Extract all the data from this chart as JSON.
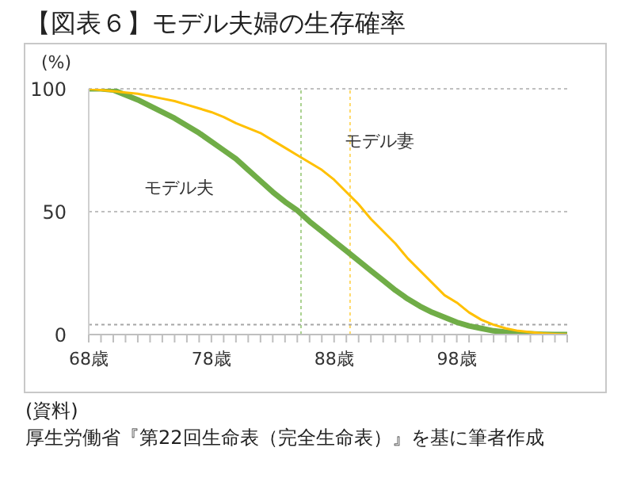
{
  "chart_data": {
    "type": "line",
    "title": "【図表６】モデル夫婦の生存確率",
    "ylabel": "(%)",
    "annotations": [
      "(資料)",
      "厚生労働省『第22回生命表（完全生命表）』を基に筆者作成"
    ],
    "x": [
      68,
      69,
      70,
      71,
      72,
      73,
      74,
      75,
      76,
      77,
      78,
      79,
      80,
      81,
      82,
      83,
      84,
      85,
      86,
      87,
      88,
      89,
      90,
      91,
      92,
      93,
      94,
      95,
      96,
      97,
      98,
      99,
      100,
      101,
      102,
      103,
      104,
      105,
      106,
      107
    ],
    "series": [
      {
        "name": "モデル夫",
        "color": "#70ad47",
        "values": [
          100,
          100,
          99.5,
          97.5,
          95.5,
          93,
          90.5,
          88,
          85,
          82,
          78.5,
          75,
          71.5,
          67,
          62.5,
          58,
          54,
          50.5,
          46,
          42,
          38,
          34,
          30,
          26,
          22,
          18,
          14.5,
          11.5,
          9,
          7,
          5,
          3.5,
          2.5,
          1.5,
          1,
          0.5,
          0.3,
          0.1,
          0,
          0
        ]
      },
      {
        "name": "モデル妻",
        "color": "#ffc000",
        "values": [
          100,
          99.5,
          99,
          98.5,
          98,
          97,
          96,
          95,
          93.5,
          92,
          90.5,
          88.5,
          86,
          84,
          82,
          79,
          76,
          73,
          70,
          67,
          63,
          58,
          53,
          47,
          42,
          37,
          31,
          26,
          21,
          16,
          13,
          9,
          6,
          4,
          2.5,
          1.5,
          1,
          0.5,
          0.2,
          0
        ]
      }
    ],
    "xlim": [
      68,
      107
    ],
    "xticks": [
      {
        "value": 68,
        "label": "68歳"
      },
      {
        "value": 69,
        "label": null
      },
      {
        "value": 70,
        "label": null
      },
      {
        "value": 71,
        "label": null
      },
      {
        "value": 72,
        "label": null
      },
      {
        "value": 73,
        "label": null
      },
      {
        "value": 74,
        "label": null
      },
      {
        "value": 75,
        "label": null
      },
      {
        "value": 76,
        "label": null
      },
      {
        "value": 77,
        "label": null
      },
      {
        "value": 78,
        "label": "78歳"
      },
      {
        "value": 79,
        "label": null
      },
      {
        "value": 80,
        "label": null
      },
      {
        "value": 81,
        "label": null
      },
      {
        "value": 82,
        "label": null
      },
      {
        "value": 83,
        "label": null
      },
      {
        "value": 84,
        "label": null
      },
      {
        "value": 85,
        "label": null
      },
      {
        "value": 86,
        "label": null
      },
      {
        "value": 87,
        "label": null
      },
      {
        "value": 88,
        "label": "88歳"
      },
      {
        "value": 89,
        "label": null
      },
      {
        "value": 90,
        "label": null
      },
      {
        "value": 91,
        "label": null
      },
      {
        "value": 92,
        "label": null
      },
      {
        "value": 93,
        "label": null
      },
      {
        "value": 94,
        "label": null
      },
      {
        "value": 95,
        "label": null
      },
      {
        "value": 96,
        "label": null
      },
      {
        "value": 97,
        "label": null
      },
      {
        "value": 98,
        "label": "98歳"
      },
      {
        "value": 99,
        "label": null
      },
      {
        "value": 100,
        "label": null
      },
      {
        "value": 101,
        "label": null
      },
      {
        "value": 102,
        "label": null
      },
      {
        "value": 103,
        "label": null
      },
      {
        "value": 104,
        "label": null
      },
      {
        "value": 105,
        "label": null
      },
      {
        "value": 106,
        "label": null
      },
      {
        "value": 107,
        "label": null
      }
    ],
    "ylim": [
      0,
      100
    ],
    "yticks": [
      0,
      50,
      100
    ],
    "grid": "y",
    "legend": false,
    "marker": "none",
    "line_style": "solid",
    "ref_lines": [
      {
        "axis": "x",
        "value": 85.3,
        "color": "#a9d18e",
        "line_style": "dotted"
      },
      {
        "axis": "x",
        "value": 89.3,
        "color": "#ffd966",
        "line_style": "dotted"
      },
      {
        "axis": "y",
        "value": 4,
        "color": "#a6a6a6",
        "line_style": "dotted"
      }
    ]
  }
}
